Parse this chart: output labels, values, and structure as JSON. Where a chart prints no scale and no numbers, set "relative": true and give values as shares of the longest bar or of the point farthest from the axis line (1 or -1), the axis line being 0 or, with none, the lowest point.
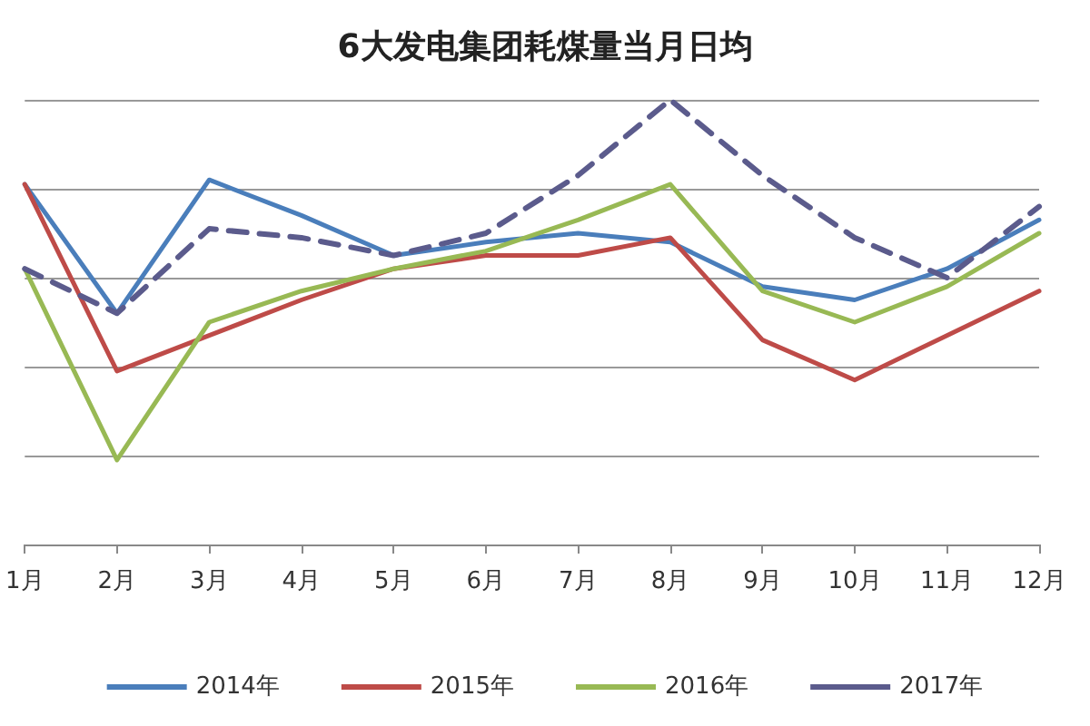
{
  "chart_data": {
    "type": "line",
    "title": "6大发电集团耗煤量当月日均",
    "relative": true,
    "categories": [
      "1月",
      "2月",
      "3月",
      "4月",
      "5月",
      "6月",
      "7月",
      "8月",
      "9月",
      "10月",
      "11月",
      "12月"
    ],
    "series": [
      {
        "name": "2014年",
        "color": "#4a7ebb",
        "line_style": "solid",
        "values": [
          0.81,
          0.52,
          0.82,
          0.74,
          0.65,
          0.68,
          0.7,
          0.68,
          0.58,
          0.55,
          0.62,
          0.73
        ]
      },
      {
        "name": "2015年",
        "color": "#be4b48",
        "line_style": "solid",
        "values": [
          0.81,
          0.39,
          0.47,
          0.55,
          0.62,
          0.65,
          0.65,
          0.69,
          0.46,
          0.37,
          0.47,
          0.57
        ]
      },
      {
        "name": "2016年",
        "color": "#98b954",
        "line_style": "solid",
        "values": [
          0.62,
          0.19,
          0.5,
          0.57,
          0.62,
          0.66,
          0.73,
          0.81,
          0.57,
          0.5,
          0.58,
          0.7
        ]
      },
      {
        "name": "2017年",
        "color": "#5b5b8c",
        "line_style": "dashed",
        "values": [
          0.62,
          0.52,
          0.71,
          0.69,
          0.65,
          0.7,
          0.83,
          1,
          0.83,
          0.69,
          0.6,
          0.76
        ]
      }
    ],
    "grid": "y",
    "legend": "bottom",
    "marker": "none"
  }
}
